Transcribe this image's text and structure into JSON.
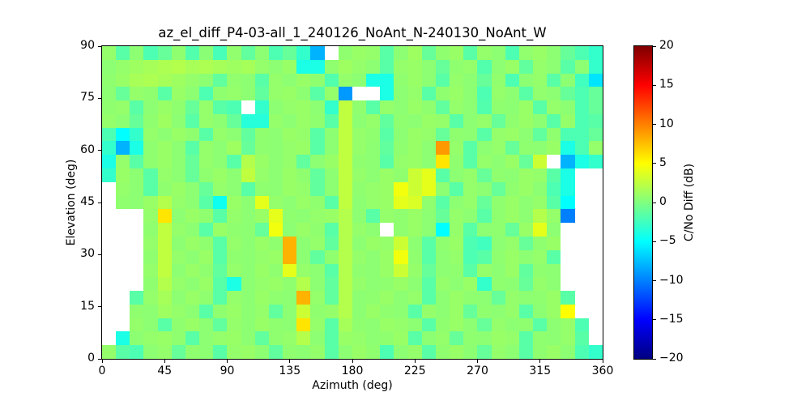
{
  "chart_data": {
    "type": "heatmap",
    "title": "az_el_diff_P4-03-all_1_240126_NoAnt_N-240130_NoAnt_W",
    "xlabel": "Azimuth (deg)",
    "ylabel": "Elevation (deg)",
    "x_range": [
      0,
      360
    ],
    "y_range": [
      0,
      90
    ],
    "x_tick_values": [
      0,
      45,
      90,
      135,
      180,
      225,
      270,
      315,
      360
    ],
    "x_tick_labels": [
      "0",
      "45",
      "90",
      "135",
      "180",
      "225",
      "270",
      "315",
      "360"
    ],
    "y_tick_values": [
      0,
      15,
      30,
      45,
      60,
      75,
      90
    ],
    "y_tick_labels": [
      "0",
      "15",
      "30",
      "45",
      "60",
      "75",
      "90"
    ],
    "colorbar": {
      "label": "C/No Diff (dB)",
      "vmin": -20,
      "vmax": 20,
      "tick_values": [
        20,
        15,
        10,
        5,
        0,
        -5,
        -10,
        -15,
        -20
      ],
      "tick_labels": [
        "20",
        "15",
        "10",
        "5",
        "0",
        "−5",
        "−10",
        "−15",
        "−20"
      ],
      "colormap": "jet"
    },
    "grid_shape": [
      23,
      36
    ],
    "az_bin_width_deg": 10,
    "el_bin_width_deg": 3.91,
    "row_order": "top_to_bottom_el_90_to_0",
    "nan_rendering": "white",
    "values": [
      [
        0.8,
        -1.5,
        0.5,
        -2,
        -1,
        0.6,
        -1.8,
        0.4,
        -2.2,
        0.7,
        -1.2,
        0.5,
        -2,
        -1,
        -3,
        -8,
        null,
        0.6,
        1,
        0.8,
        -1.5,
        0.5,
        1.2,
        -1,
        0.6,
        1,
        -1.5,
        0.8,
        0.5,
        -2,
        0.7,
        1,
        0.5,
        -1,
        -2,
        -3
      ],
      [
        0.5,
        0.8,
        1.2,
        1.5,
        1.8,
        2,
        1.6,
        1.8,
        1.5,
        1.2,
        1.5,
        0.8,
        0.5,
        1,
        -4,
        -4,
        0.6,
        1.2,
        0.8,
        0.5,
        -1.5,
        0.8,
        1,
        0.5,
        -1,
        0.6,
        0.8,
        -1.8,
        0.5,
        1,
        -1.2,
        0.8,
        0.5,
        -1.5,
        0.5,
        -3
      ],
      [
        0.6,
        1,
        1.6,
        1.8,
        1.5,
        1.2,
        0.8,
        0.5,
        -1.2,
        0.7,
        0.5,
        -1.5,
        0.8,
        0.5,
        1,
        0.6,
        -1.8,
        0.8,
        0.5,
        -4,
        -4,
        0.6,
        1,
        0.5,
        -1.5,
        0.8,
        0.5,
        -1,
        0.7,
        -2,
        0.5,
        0.8,
        -1.5,
        0.5,
        -2.5,
        -6
      ],
      [
        0.5,
        -1,
        0.8,
        0.6,
        -1.5,
        1,
        0.5,
        -2,
        0.6,
        0.8,
        0.5,
        -1.2,
        0.8,
        1,
        0.5,
        -1.5,
        0.8,
        -9,
        null,
        null,
        -4,
        0.5,
        0.8,
        -1.5,
        0.6,
        1,
        0.5,
        -2,
        0.8,
        0.5,
        -1.5,
        0.7,
        0.5,
        -1,
        -2,
        -1
      ],
      [
        0.6,
        0.8,
        -1.5,
        0.5,
        1,
        0.6,
        -1,
        0.8,
        -1.5,
        -2,
        null,
        -3,
        0.5,
        0.8,
        1,
        0.5,
        -3,
        2.5,
        0.6,
        -1.5,
        0.8,
        0.5,
        1,
        0.6,
        -1.2,
        0.8,
        0.5,
        -1.8,
        0.6,
        0.5,
        1,
        -1.5,
        0.8,
        0.5,
        -2,
        -1
      ],
      [
        0.8,
        0.5,
        -1,
        0.6,
        1.2,
        0.5,
        -1.5,
        0.8,
        0.5,
        -1,
        -3.5,
        -3.5,
        0.8,
        0.5,
        1,
        0.6,
        -1.5,
        2.5,
        0.5,
        0.8,
        -1.2,
        0.6,
        0.5,
        1,
        0.8,
        -1.5,
        0.5,
        0.8,
        -1,
        0.6,
        1,
        0.5,
        -1.5,
        0.8,
        -2,
        -1.5
      ],
      [
        -2,
        -5,
        -3,
        0.8,
        0.5,
        1,
        0.6,
        -1.5,
        0.8,
        0.5,
        -1.2,
        0.6,
        0.5,
        1,
        0.8,
        -1.5,
        0.5,
        2.5,
        0.8,
        0.6,
        -1.5,
        0.5,
        1,
        0.8,
        -1,
        0.6,
        0.5,
        -1.5,
        0.8,
        1,
        0.5,
        -1.2,
        0.6,
        -2,
        -2,
        -1
      ],
      [
        -3,
        -8,
        -4,
        0.6,
        1,
        0.5,
        -1.5,
        0.8,
        0.5,
        1.2,
        -1,
        0.6,
        0.5,
        0.8,
        1,
        -1.5,
        0.5,
        2.5,
        0.8,
        0.5,
        -1.2,
        0.6,
        1,
        0.5,
        9,
        0.8,
        -1.5,
        0.5,
        0.8,
        -1,
        0.6,
        0.5,
        1,
        -4,
        -2,
        0.8
      ],
      [
        -4,
        0.8,
        -1.5,
        0.6,
        1,
        0.5,
        -1,
        0.8,
        0.5,
        -1.5,
        2,
        1,
        0.5,
        0.8,
        -1.2,
        0.5,
        1,
        2.5,
        0.6,
        0.5,
        -1.5,
        0.8,
        1,
        0.5,
        6,
        0.6,
        -1.5,
        0.8,
        0.5,
        1,
        -1,
        3,
        null,
        -8,
        -4,
        -3
      ],
      [
        -3,
        1,
        0.5,
        -1.5,
        0.8,
        0.5,
        -1,
        0.6,
        1,
        0.5,
        2.5,
        0.8,
        0.5,
        1,
        0.6,
        -1.2,
        0.5,
        2.5,
        0.8,
        0.5,
        1,
        0.6,
        3,
        4,
        -1.5,
        0.5,
        0.8,
        -1,
        0.6,
        0.5,
        1,
        0.8,
        -1.5,
        -4,
        null,
        null
      ],
      [
        null,
        0.8,
        0.5,
        -1.5,
        0.6,
        1,
        0.5,
        -1,
        0.8,
        0.5,
        -1.5,
        0.6,
        0.5,
        1,
        0.8,
        -1.2,
        0.5,
        2.5,
        0.6,
        0.8,
        1,
        4.5,
        3,
        4,
        0.5,
        -1.5,
        0.8,
        0.5,
        -1,
        0.6,
        1,
        0.5,
        -2,
        -4,
        null,
        null
      ],
      [
        null,
        0.6,
        0.5,
        1,
        2,
        0.8,
        0.5,
        -1.5,
        -4.5,
        1,
        0.5,
        4,
        0.8,
        0.5,
        1,
        0.6,
        -1.5,
        2.5,
        0.5,
        0.8,
        1,
        4,
        3.5,
        0.6,
        -1.5,
        0.5,
        0.8,
        -1,
        0.6,
        1,
        0.5,
        0.8,
        -1.5,
        -5,
        null,
        null
      ],
      [
        null,
        null,
        null,
        0.8,
        6,
        0.5,
        1,
        0.6,
        -1.5,
        0.8,
        0.5,
        1,
        4,
        0.6,
        0.5,
        0.8,
        1,
        2,
        0.5,
        -1.5,
        0.8,
        0.6,
        1,
        0.5,
        -1,
        0.8,
        0.5,
        -1.5,
        0.6,
        1,
        0.5,
        2,
        0.8,
        -10,
        null,
        null
      ],
      [
        null,
        null,
        null,
        0.6,
        2.5,
        0.8,
        0.5,
        -1.5,
        1,
        0.6,
        0.5,
        -1,
        4.5,
        0.5,
        1,
        0.6,
        -1.5,
        2,
        0.8,
        0.5,
        null,
        0.6,
        1,
        0.5,
        -5,
        0.8,
        -1.5,
        0.5,
        0.6,
        -1,
        1,
        4,
        0.5,
        null,
        null,
        null
      ],
      [
        null,
        null,
        null,
        0.8,
        2.5,
        0.5,
        1,
        0.6,
        -1.5,
        0.8,
        0.5,
        1,
        0.6,
        8,
        0.5,
        0.8,
        -1.2,
        2,
        0.5,
        1,
        0.8,
        3,
        0.5,
        -1.5,
        0.6,
        1,
        -2,
        -2.5,
        0.5,
        0.8,
        -1,
        0.6,
        1,
        null,
        null,
        null
      ],
      [
        null,
        null,
        null,
        0.6,
        2.5,
        0.8,
        0.5,
        1,
        -1.5,
        0.6,
        0.5,
        0.8,
        1,
        8,
        0.5,
        -1.2,
        0.6,
        2,
        0.8,
        0.5,
        1,
        4.5,
        0.6,
        -1.5,
        0.5,
        0.8,
        -2,
        -1.5,
        0.6,
        1,
        0.5,
        0.8,
        -1.5,
        null,
        null,
        null
      ],
      [
        null,
        null,
        null,
        0.8,
        2.5,
        0.5,
        1,
        0.6,
        -1.2,
        0.8,
        0.5,
        1,
        0.6,
        4,
        0.8,
        0.5,
        -1.5,
        2,
        0.6,
        0.5,
        1,
        3,
        0.8,
        -1,
        0.5,
        0.6,
        -1.5,
        0.8,
        0.5,
        1,
        -1.2,
        0.6,
        0.5,
        null,
        null,
        null
      ],
      [
        null,
        null,
        null,
        0.6,
        2,
        0.8,
        0.5,
        1,
        -1.5,
        -4,
        0.5,
        0.8,
        1,
        0.6,
        2,
        0.5,
        -1.2,
        2,
        0.8,
        0.5,
        0.6,
        1,
        0.5,
        -1.5,
        0.8,
        0.5,
        1,
        -3,
        0.6,
        0.5,
        -1,
        0.8,
        0.5,
        null,
        null,
        null
      ],
      [
        null,
        null,
        -1.5,
        0.8,
        1.5,
        0.5,
        1,
        0.6,
        -1.5,
        0.8,
        0.5,
        1,
        0.6,
        0.5,
        8,
        0.8,
        -1.2,
        2,
        0.5,
        0.6,
        1,
        0.5,
        0.8,
        -1.5,
        0.5,
        1,
        0.6,
        0.5,
        -1,
        0.8,
        0.5,
        0.6,
        1,
        -1.5,
        null,
        null
      ],
      [
        null,
        null,
        0.6,
        0.5,
        1.2,
        0.8,
        0.5,
        -1.5,
        0.6,
        1,
        0.5,
        0.8,
        -1.2,
        0.5,
        3,
        0.6,
        0.8,
        2,
        0.5,
        1,
        0.6,
        0.5,
        -1.5,
        0.8,
        0.5,
        1,
        -1,
        0.6,
        0.5,
        0.8,
        -1.5,
        0.5,
        1,
        5,
        null,
        null
      ],
      [
        null,
        null,
        0.8,
        0.5,
        -1.5,
        0.6,
        1,
        0.5,
        -1.2,
        0.8,
        0.5,
        1,
        0.6,
        0.5,
        6,
        0.8,
        -1.5,
        1.5,
        0.6,
        0.5,
        1,
        0.8,
        0.5,
        -1.5,
        0.6,
        1,
        0.5,
        -1,
        0.8,
        0.5,
        0.6,
        -1.5,
        0.5,
        0.8,
        -2,
        null
      ],
      [
        null,
        -4,
        0.5,
        0.8,
        1,
        0.6,
        -1.5,
        0.5,
        0.8,
        1,
        0.5,
        -1.2,
        0.6,
        0.8,
        2,
        0.5,
        -1.5,
        1,
        0.8,
        0.5,
        0.6,
        1,
        -1.5,
        0.5,
        0.8,
        -1,
        0.6,
        0.5,
        1,
        0.8,
        -1.5,
        0.6,
        0.5,
        0.8,
        -1.5,
        null
      ],
      [
        0.8,
        -1.5,
        -2,
        0.5,
        0.8,
        -1,
        0.6,
        0.5,
        -1.5,
        0.8,
        1,
        0.5,
        -1.2,
        0.6,
        0.5,
        0.8,
        -1.5,
        0.5,
        1,
        0.6,
        -2,
        0.5,
        0.8,
        -1.5,
        0.6,
        1,
        0.5,
        -1,
        0.8,
        0.5,
        -1.5,
        0.6,
        1,
        0.5,
        -2,
        -3
      ]
    ]
  }
}
